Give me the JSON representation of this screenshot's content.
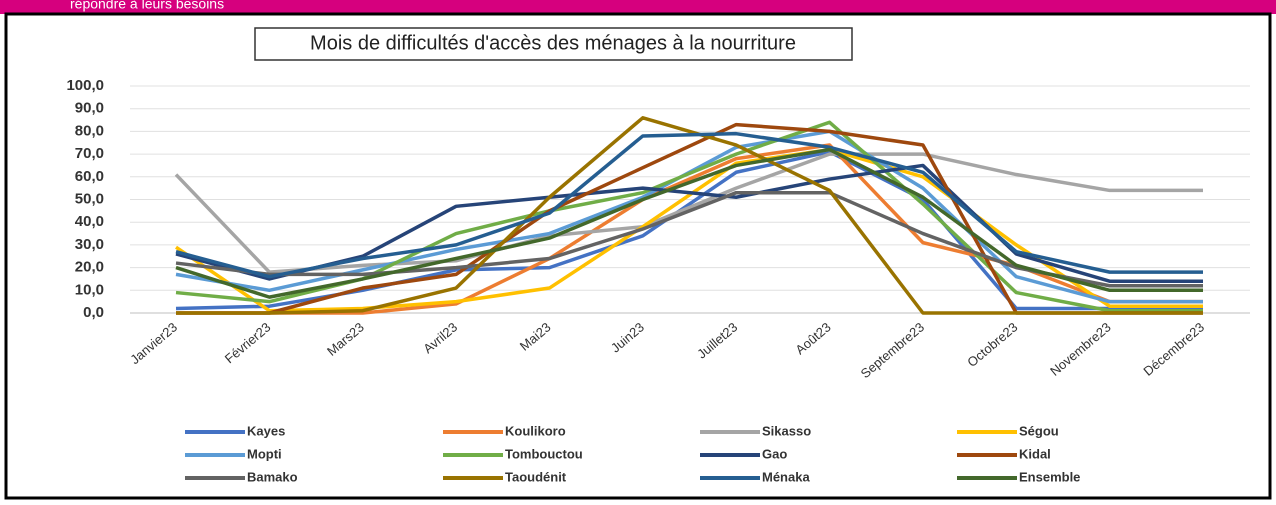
{
  "header_text": "répondre à leurs besoins",
  "chart_data": {
    "type": "line",
    "title": "Mois de difficultés d'accès des ménages à la nourriture",
    "categories": [
      "Janvier23",
      "Février23",
      "Mars23",
      "Avril23",
      "Mai23",
      "Juin23",
      "Juillet23",
      "Août23",
      "Septembre23",
      "Octobre23",
      "Novembre23",
      "Décembre23"
    ],
    "ylim": [
      0,
      100
    ],
    "yticks": [
      {
        "value": 0,
        "label": "0,0"
      },
      {
        "value": 10,
        "label": "10,0"
      },
      {
        "value": 20,
        "label": "20,0"
      },
      {
        "value": 30,
        "label": "30,0"
      },
      {
        "value": 40,
        "label": "40,0"
      },
      {
        "value": 50,
        "label": "50,0"
      },
      {
        "value": 60,
        "label": "60,0"
      },
      {
        "value": 70,
        "label": "70,0"
      },
      {
        "value": 80,
        "label": "80,0"
      },
      {
        "value": 90,
        "label": "90,0"
      },
      {
        "value": 100,
        "label": "100,0"
      }
    ],
    "grid": true,
    "legend": "bottom",
    "series": [
      {
        "name": "Kayes",
        "color": "#4472c4",
        "values": [
          2,
          3,
          10,
          19,
          20,
          34,
          62,
          71,
          50,
          2,
          2,
          2
        ]
      },
      {
        "name": "Koulikoro",
        "color": "#ed7d31",
        "values": [
          0,
          0,
          0,
          4,
          24,
          50,
          68,
          74,
          31,
          21,
          5,
          5
        ]
      },
      {
        "name": "Sikasso",
        "color": "#a5a5a5",
        "values": [
          61,
          18,
          21,
          23,
          34,
          38,
          55,
          70,
          70,
          61,
          54,
          54
        ]
      },
      {
        "name": "Ségou",
        "color": "#ffc000",
        "values": [
          29,
          1,
          2,
          5,
          11,
          38,
          66,
          72,
          60,
          30,
          3,
          3
        ]
      },
      {
        "name": "Mopti",
        "color": "#5b9bd5",
        "values": [
          17,
          10,
          19,
          28,
          35,
          51,
          73,
          80,
          55,
          16,
          5,
          5
        ]
      },
      {
        "name": "Tombouctou",
        "color": "#70ad47",
        "values": [
          9,
          5,
          15,
          35,
          45,
          53,
          70,
          84,
          48,
          9,
          1,
          1
        ]
      },
      {
        "name": "Gao",
        "color": "#264478",
        "values": [
          26,
          15,
          25,
          47,
          51,
          55,
          51,
          59,
          65,
          26,
          14,
          14
        ]
      },
      {
        "name": "Kidal",
        "color": "#9e480e",
        "values": [
          0,
          0,
          11,
          17,
          45,
          64,
          83,
          80,
          74,
          0,
          0,
          0
        ]
      },
      {
        "name": "Bamako",
        "color": "#636363",
        "values": [
          22,
          17,
          17,
          20,
          24,
          37,
          53,
          53,
          35,
          20,
          12,
          12
        ]
      },
      {
        "name": "Taoudénit",
        "color": "#997300",
        "values": [
          0,
          0,
          1,
          11,
          51,
          86,
          74,
          54,
          0,
          0,
          0,
          0
        ]
      },
      {
        "name": "Ménaka",
        "color": "#255e91",
        "values": [
          27,
          16,
          24,
          30,
          44,
          78,
          79,
          73,
          62,
          27,
          18,
          18
        ]
      },
      {
        "name": "Ensemble",
        "color": "#43682b",
        "values": [
          20,
          7,
          15,
          24,
          33,
          50,
          65,
          72,
          51,
          21,
          10,
          10
        ]
      }
    ]
  }
}
